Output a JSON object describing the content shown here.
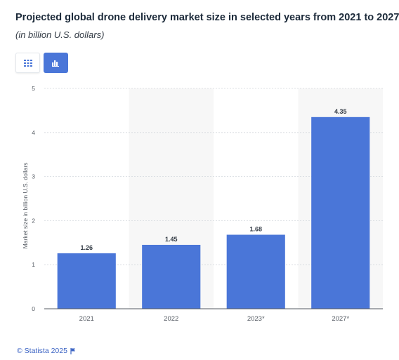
{
  "header": {
    "title": "Projected global drone delivery market size in selected years from 2021 to 2027",
    "subtitle": "(in billion U.S. dollars)"
  },
  "toolbar": {
    "table_icon": "table-grid-icon",
    "chart_icon": "bar-chart-icon",
    "active": "chart"
  },
  "colors": {
    "bar": "#4a76d8",
    "active_button": "#4a76d8",
    "band": "#f7f7f7"
  },
  "chart_data": {
    "type": "bar",
    "title": "",
    "xlabel": "",
    "ylabel": "Market size in billion U.S. dollars",
    "categories": [
      "2021",
      "2022",
      "2023*",
      "2027*"
    ],
    "values": [
      1.26,
      1.45,
      1.68,
      4.35
    ],
    "data_labels": [
      "1.26",
      "1.45",
      "1.68",
      "4.35"
    ],
    "ylim": [
      0,
      5
    ],
    "yticks": [
      "0",
      "1",
      "2",
      "3",
      "4",
      "5"
    ],
    "grid": true,
    "legend": "none"
  },
  "footer": {
    "credit": "© Statista 2025"
  }
}
